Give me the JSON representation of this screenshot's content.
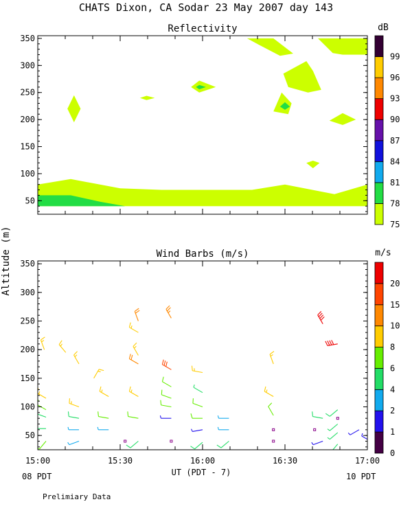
{
  "page": {
    "title": "CHATS Dixon, CA  Sodar  23 May 2007  day 143",
    "ylabel": "Altitude (m)",
    "xlabel": "UT  (PDT - 7)",
    "start_local": "08 PDT",
    "end_local": "10 PDT",
    "footer": "Prelimiary Data"
  },
  "chart_data": [
    {
      "type": "heatmap",
      "title": "Reflectivity",
      "colorbar_unit": "dB",
      "x_ticks": [
        "15:00",
        "15:30",
        "16:00",
        "16:30",
        "17:00"
      ],
      "x_range_hours_ut": [
        15.0,
        17.0
      ],
      "ylim": [
        25,
        355
      ],
      "y_ticks": [
        50,
        100,
        150,
        200,
        250,
        300,
        350
      ],
      "colorbar": {
        "levels": [
          "75",
          "78",
          "81",
          "84",
          "87",
          "90",
          "93",
          "96",
          "99"
        ],
        "colors": [
          "#ccff00",
          "#22dd44",
          "#11aaee",
          "#1111dd",
          "#6611aa",
          "#ee0000",
          "#ff8800",
          "#ffcc00",
          "#330033"
        ]
      },
      "contour_regions": [
        {
          "level": 75,
          "points": [
            [
              15.0,
              80
            ],
            [
              15.2,
              90
            ],
            [
              15.5,
              73
            ],
            [
              15.75,
              70
            ],
            [
              16.3,
              70
            ],
            [
              16.5,
              80
            ],
            [
              16.8,
              62
            ],
            [
              17.0,
              80
            ],
            [
              17.0,
              40
            ],
            [
              15.0,
              40
            ]
          ]
        },
        {
          "level": 78,
          "points": [
            [
              15.0,
              60
            ],
            [
              15.2,
              60
            ],
            [
              15.38,
              48
            ],
            [
              15.53,
              40
            ],
            [
              15.0,
              40
            ]
          ]
        },
        {
          "level": 75,
          "points": [
            [
              15.22,
              245
            ],
            [
              15.26,
              220
            ],
            [
              15.22,
              195
            ],
            [
              15.18,
              220
            ]
          ]
        },
        {
          "level": 75,
          "points": [
            [
              15.62,
              240
            ],
            [
              15.66,
              244
            ],
            [
              15.71,
              240
            ],
            [
              15.66,
              236
            ]
          ]
        },
        {
          "level": 75,
          "points": [
            [
              15.93,
              260
            ],
            [
              15.98,
              272
            ],
            [
              16.08,
              260
            ],
            [
              15.98,
              250
            ]
          ]
        },
        {
          "level": 78,
          "points": [
            [
              15.96,
              260
            ],
            [
              15.98,
              264
            ],
            [
              16.02,
              260
            ],
            [
              15.98,
              256
            ]
          ]
        },
        {
          "level": 75,
          "points": [
            [
              16.27,
              350
            ],
            [
              16.43,
              350
            ],
            [
              16.55,
              322
            ],
            [
              16.47,
              318
            ],
            [
              16.35,
              337
            ]
          ]
        },
        {
          "level": 75,
          "points": [
            [
              16.7,
              350
            ],
            [
              17.0,
              350
            ],
            [
              17.0,
              320
            ],
            [
              16.85,
              320
            ],
            [
              16.79,
              323
            ]
          ]
        },
        {
          "level": 75,
          "points": [
            [
              16.49,
              285
            ],
            [
              16.63,
              308
            ],
            [
              16.67,
              290
            ],
            [
              16.72,
              255
            ],
            [
              16.64,
              250
            ],
            [
              16.52,
              260
            ]
          ]
        },
        {
          "level": 75,
          "points": [
            [
              16.43,
              215
            ],
            [
              16.48,
              250
            ],
            [
              16.54,
              230
            ],
            [
              16.52,
              210
            ]
          ]
        },
        {
          "level": 78,
          "points": [
            [
              16.47,
              224
            ],
            [
              16.5,
              232
            ],
            [
              16.53,
              224
            ],
            [
              16.5,
              218
            ]
          ]
        },
        {
          "level": 75,
          "points": [
            [
              16.77,
              198
            ],
            [
              16.85,
              212
            ],
            [
              16.93,
              200
            ],
            [
              16.85,
              190
            ]
          ]
        },
        {
          "level": 75,
          "points": [
            [
              16.63,
              120
            ],
            [
              16.67,
              124
            ],
            [
              16.71,
              120
            ],
            [
              16.67,
              110
            ]
          ]
        }
      ]
    },
    {
      "type": "scatter",
      "title": "Wind Barbs (m/s)",
      "colorbar_unit": "m/s",
      "x_ticks": [
        "15:00",
        "15:30",
        "16:00",
        "16:30",
        "17:00"
      ],
      "x_range_hours_ut": [
        15.0,
        17.0
      ],
      "ylim": [
        25,
        355
      ],
      "y_ticks": [
        50,
        100,
        150,
        200,
        250,
        300,
        350
      ],
      "colorbar": {
        "levels": [
          "0",
          "1",
          "2",
          "4",
          "6",
          "8",
          "10",
          "15",
          "20"
        ],
        "colors": [
          "#440044",
          "#2211ee",
          "#11aaee",
          "#22dd66",
          "#66ee00",
          "#ffcc00",
          "#ff8800",
          "#ff4400",
          "#ee0000"
        ]
      },
      "barbs": [
        {
          "t": 15.04,
          "z": 200,
          "speed": 9,
          "dir": 340
        },
        {
          "t": 15.17,
          "z": 195,
          "speed": 8,
          "dir": 320
        },
        {
          "t": 15.25,
          "z": 175,
          "speed": 8,
          "dir": 330
        },
        {
          "t": 15.34,
          "z": 150,
          "speed": 9,
          "dir": 30
        },
        {
          "t": 15.05,
          "z": 115,
          "speed": 8,
          "dir": 300
        },
        {
          "t": 15.25,
          "z": 100,
          "speed": 8,
          "dir": 290
        },
        {
          "t": 15.43,
          "z": 118,
          "speed": 9,
          "dir": 300
        },
        {
          "t": 15.61,
          "z": 118,
          "speed": 8,
          "dir": 300
        },
        {
          "t": 15.05,
          "z": 95,
          "speed": 6,
          "dir": 300
        },
        {
          "t": 15.05,
          "z": 82,
          "speed": 5,
          "dir": 290
        },
        {
          "t": 15.25,
          "z": 80,
          "speed": 5,
          "dir": 280
        },
        {
          "t": 15.43,
          "z": 80,
          "speed": 6,
          "dir": 280
        },
        {
          "t": 15.61,
          "z": 80,
          "speed": 6,
          "dir": 280
        },
        {
          "t": 15.05,
          "z": 62,
          "speed": 4,
          "dir": 270
        },
        {
          "t": 15.25,
          "z": 60,
          "speed": 3,
          "dir": 270
        },
        {
          "t": 15.43,
          "z": 60,
          "speed": 3,
          "dir": 270
        },
        {
          "t": 15.05,
          "z": 40,
          "speed": 6,
          "dir": 220
        },
        {
          "t": 15.25,
          "z": 40,
          "speed": 3,
          "dir": 250
        },
        {
          "t": 15.61,
          "z": 40,
          "speed": 5,
          "dir": 230
        },
        {
          "t": 15.53,
          "z": 40,
          "speed": 0,
          "dir": 0
        },
        {
          "t": 15.61,
          "z": 250,
          "speed": 10,
          "dir": 340
        },
        {
          "t": 15.61,
          "z": 230,
          "speed": 9,
          "dir": 300
        },
        {
          "t": 15.61,
          "z": 190,
          "speed": 9,
          "dir": 330
        },
        {
          "t": 15.61,
          "z": 175,
          "speed": 10,
          "dir": 300
        },
        {
          "t": 15.81,
          "z": 255,
          "speed": 14,
          "dir": 330
        },
        {
          "t": 15.81,
          "z": 165,
          "speed": 15,
          "dir": 300
        },
        {
          "t": 15.81,
          "z": 135,
          "speed": 7,
          "dir": 300
        },
        {
          "t": 15.81,
          "z": 115,
          "speed": 7,
          "dir": 290
        },
        {
          "t": 15.81,
          "z": 100,
          "speed": 6,
          "dir": 280
        },
        {
          "t": 15.81,
          "z": 80,
          "speed": 1,
          "dir": 270
        },
        {
          "t": 15.81,
          "z": 40,
          "speed": 0,
          "dir": 0
        },
        {
          "t": 16.0,
          "z": 160,
          "speed": 8,
          "dir": 280
        },
        {
          "t": 16.0,
          "z": 125,
          "speed": 4,
          "dir": 300
        },
        {
          "t": 16.0,
          "z": 100,
          "speed": 6,
          "dir": 290
        },
        {
          "t": 16.0,
          "z": 80,
          "speed": 6,
          "dir": 270
        },
        {
          "t": 16.0,
          "z": 60,
          "speed": 1,
          "dir": 260
        },
        {
          "t": 16.0,
          "z": 38,
          "speed": 5,
          "dir": 230
        },
        {
          "t": 16.16,
          "z": 80,
          "speed": 2,
          "dir": 270
        },
        {
          "t": 16.16,
          "z": 60,
          "speed": 2,
          "dir": 270
        },
        {
          "t": 16.16,
          "z": 40,
          "speed": 5,
          "dir": 230
        },
        {
          "t": 16.43,
          "z": 175,
          "speed": 9,
          "dir": 340
        },
        {
          "t": 16.43,
          "z": 118,
          "speed": 8,
          "dir": 300
        },
        {
          "t": 16.43,
          "z": 85,
          "speed": 6,
          "dir": 330
        },
        {
          "t": 16.43,
          "z": 60,
          "speed": 0,
          "dir": 0
        },
        {
          "t": 16.43,
          "z": 40,
          "speed": 0,
          "dir": 0
        },
        {
          "t": 16.73,
          "z": 245,
          "speed": 22,
          "dir": 330
        },
        {
          "t": 16.82,
          "z": 210,
          "speed": 22,
          "dir": 260
        },
        {
          "t": 16.73,
          "z": 80,
          "speed": 5,
          "dir": 280
        },
        {
          "t": 16.82,
          "z": 95,
          "speed": 5,
          "dir": 230
        },
        {
          "t": 16.82,
          "z": 80,
          "speed": 0,
          "dir": 0
        },
        {
          "t": 16.82,
          "z": 70,
          "speed": 4,
          "dir": 230
        },
        {
          "t": 16.82,
          "z": 55,
          "speed": 4,
          "dir": 230
        },
        {
          "t": 16.82,
          "z": 35,
          "speed": 5,
          "dir": 220
        },
        {
          "t": 16.68,
          "z": 60,
          "speed": 0,
          "dir": 0
        },
        {
          "t": 16.73,
          "z": 40,
          "speed": 1,
          "dir": 250
        },
        {
          "t": 16.95,
          "z": 60,
          "speed": 1,
          "dir": 240
        },
        {
          "t": 17.02,
          "z": 40,
          "speed": 1,
          "dir": 300
        }
      ]
    }
  ]
}
